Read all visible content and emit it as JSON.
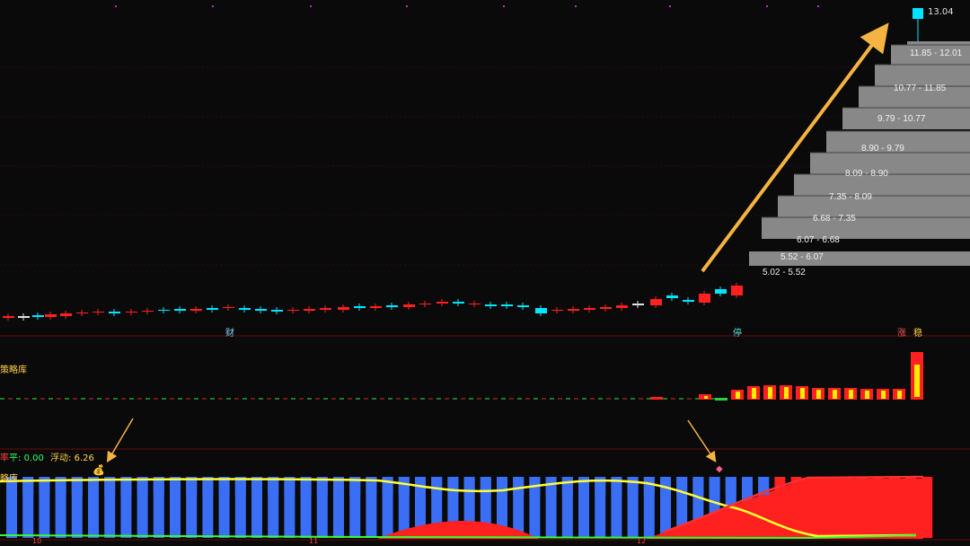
{
  "window": {
    "title": ""
  },
  "top_markers": {
    "color": "#c02ac0"
  },
  "price_peak_label": "13.04",
  "price_ranges": [
    "11.85 - 12.01",
    "10.77 - 11.85",
    "9.79 - 10.77",
    "8.90 - 9.79",
    "8.09 - 8.90",
    "7.35 - 8.09",
    "6.68 - 7.35",
    "6.07 - 6.68",
    "5.52 - 6.07",
    "5.02 - 5.52"
  ],
  "event_labels": {
    "cai": "财",
    "ting": "停",
    "zhang": "涨",
    "wen": "稳"
  },
  "panel2": {
    "title": "策略库"
  },
  "panel3": {
    "partial_label": "率",
    "stat1_label": "平:",
    "stat1_value": "0.00",
    "stat2_label": "浮动:",
    "stat2_value": "6.26",
    "title_partial": "略库"
  },
  "axis": {
    "ticks": [
      "10",
      "11",
      "12"
    ]
  },
  "colors": {
    "background": "#0a0a0a",
    "up": "#ff2020",
    "down": "#00e5ff",
    "profile": "#8c8c8c",
    "arrow": "#f5b342",
    "blue_bar": "#3a6ef5",
    "yellow_line": "#ffff33",
    "green_line": "#33ff33",
    "separator": "#6a0b0b"
  }
}
